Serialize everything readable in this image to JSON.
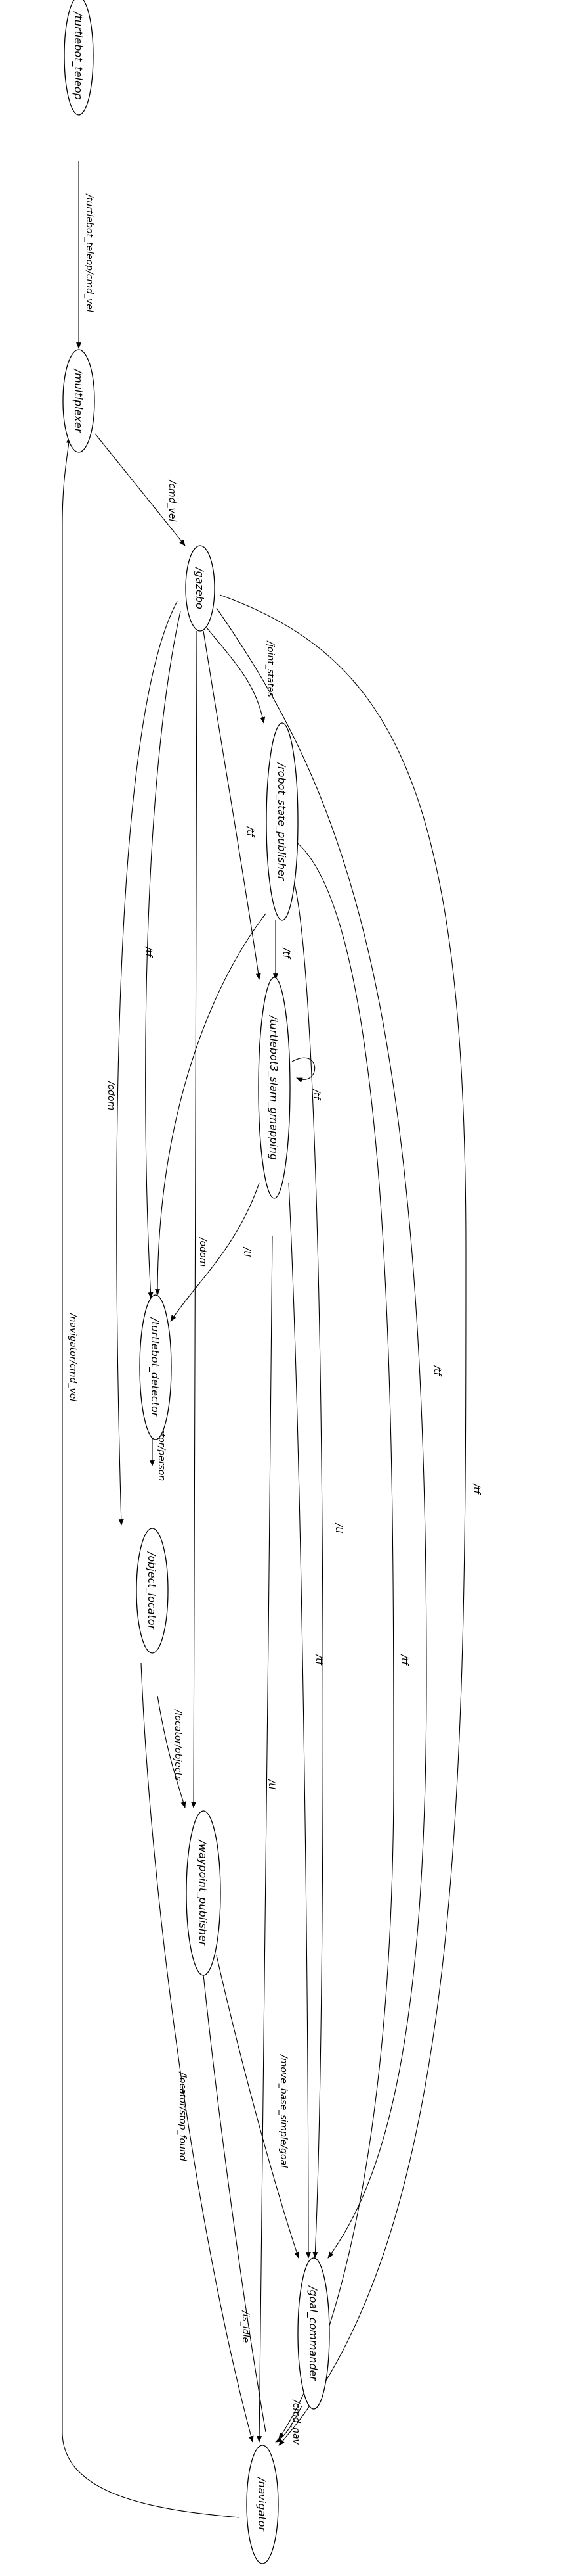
{
  "graph": {
    "nodes": {
      "teleop": "/turtlebot_teleop",
      "multiplexer": "/multiplexer",
      "gazebo": "/gazebo",
      "rsp": "/robot_state_publisher",
      "slam": "/turtlebot3_slam_gmapping",
      "detector": "/turtlebot_detector",
      "locator": "/object_locator",
      "waypoint": "/waypoint_publisher",
      "goal": "/goal_commander",
      "navigator": "/navigator"
    },
    "edge_labels": {
      "teleop_cmd": "/turtlebot_teleop/cmd_vel",
      "cmd_vel": "/cmd_vel",
      "joint_states": "/joint_states",
      "tf_gz_slam": "/tf",
      "tf_gz_det": "/tf",
      "odom_gz_loc": "/odom",
      "odom_gz_way": "/odom",
      "tf_rsp_slam": "/tf",
      "tf_slam_self": "/tf",
      "tf_slam_det": "/tf",
      "detector_person": "/detector/person",
      "locator_objects": "/locator/objects",
      "locator_stop": "/locator/stop_found",
      "tf_slam_nav": "/tf",
      "tf_slam_goal": "/tf",
      "tf_rsp_goal": "/tf",
      "tf_rsp_nav": "/tf",
      "tf_gz_goal": "/tf",
      "tf_gz_nav": "/tf",
      "move_base": "/move_base_simple/goal",
      "cmd_nav": "/cmd_nav",
      "is_idle": "/is_idle",
      "navigator_cmd": "/navigator/cmd_vel"
    }
  }
}
